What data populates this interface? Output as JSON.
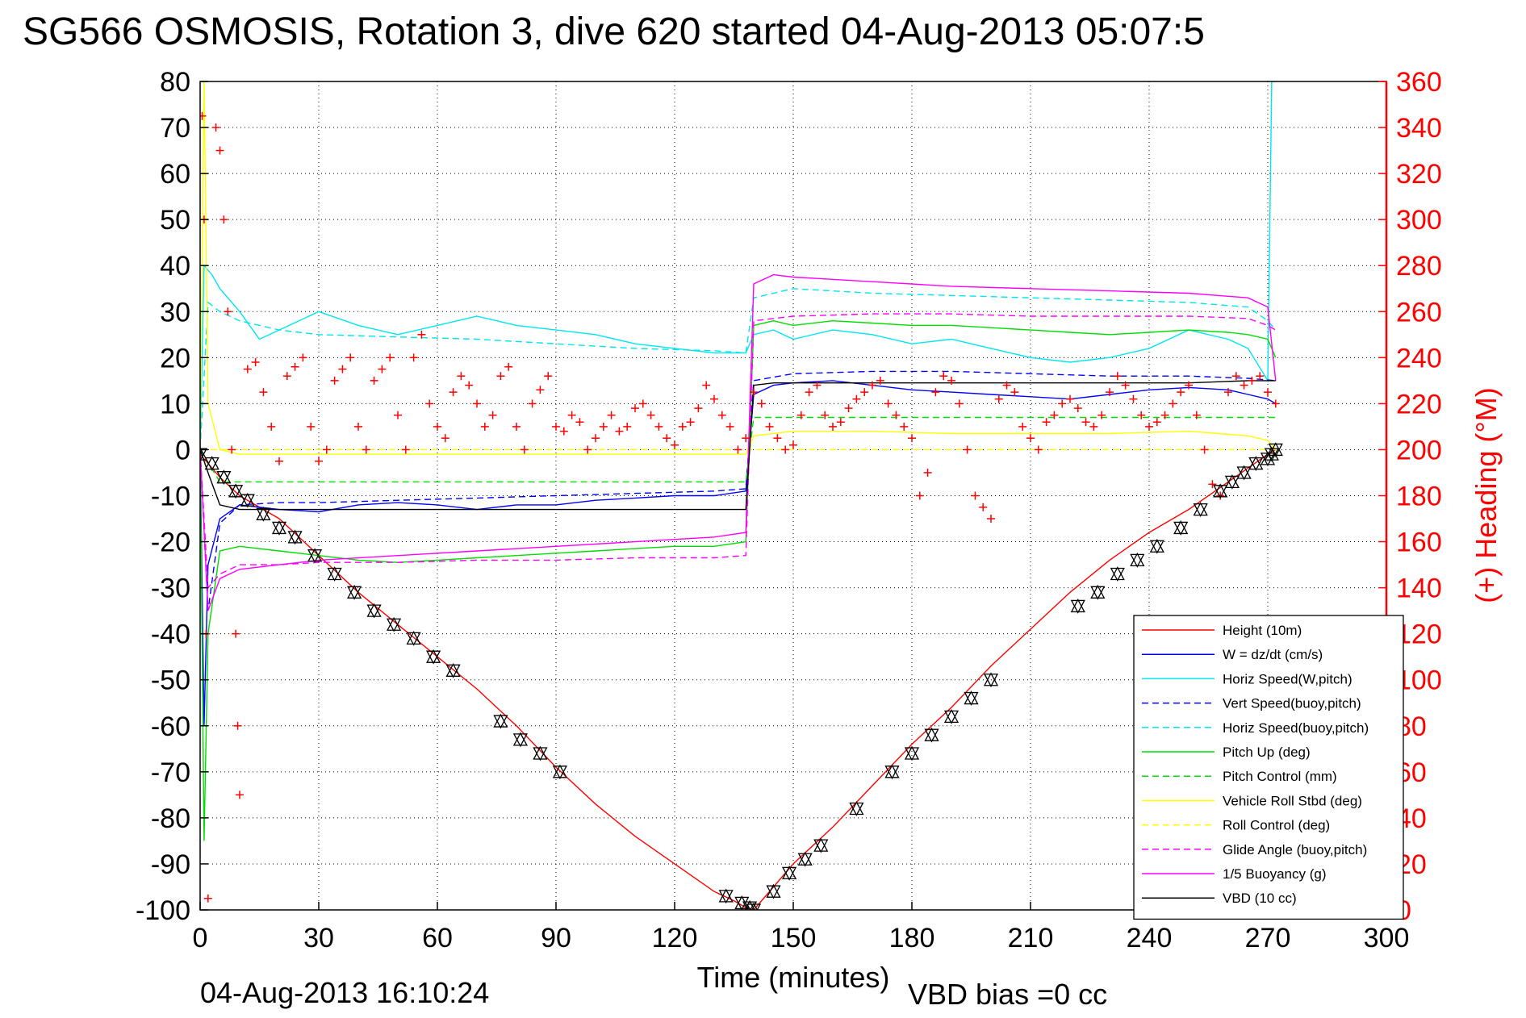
{
  "figure": {
    "title": "SG566 OSMOSIS, Rotation 3, dive 620 started 04-Aug-2013 05:07:5",
    "footer_left": "04-Aug-2013 16:10:24",
    "footer_right": "VBD bias =0 cc"
  },
  "chart_data": {
    "type": "line",
    "title": "SG566 OSMOSIS, Rotation 3, dive 620 started 04-Aug-2013 05:07:5",
    "xlabel": "Time (minutes)",
    "ylabel": "",
    "y2label": "(+) Heading (°M)",
    "xlim": [
      0,
      300
    ],
    "ylim": [
      -100,
      80
    ],
    "y2lim": [
      0,
      360
    ],
    "xticks": [
      0,
      30,
      60,
      90,
      120,
      150,
      180,
      210,
      240,
      270,
      300
    ],
    "yticks": [
      80,
      70,
      60,
      50,
      40,
      30,
      20,
      10,
      0,
      -10,
      -20,
      -30,
      -40,
      -50,
      -60,
      -70,
      -80,
      -90,
      -100
    ],
    "y2ticks": [
      360,
      340,
      320,
      300,
      280,
      260,
      240,
      220,
      200,
      180,
      160,
      140,
      120,
      100,
      80,
      60,
      40,
      20,
      0
    ],
    "grid": true,
    "legend_position": "bottom-right",
    "colors": {
      "height": "#ff0000",
      "w": "#0000ff",
      "horiz_speed": "#00e5ee",
      "pitch": "#00dd00",
      "roll": "#ffff00",
      "glide": "#ff00ff",
      "vbd": "#000000",
      "heading": "#ff0000"
    },
    "series": [
      {
        "name": "Height (10m)",
        "color": "#ff0000",
        "dash": "",
        "x": [
          0,
          5,
          10,
          20,
          30,
          40,
          50,
          60,
          70,
          80,
          90,
          100,
          110,
          120,
          130,
          135,
          138,
          140,
          145,
          150,
          160,
          170,
          180,
          190,
          200,
          210,
          220,
          230,
          240,
          250,
          260,
          265,
          270,
          272
        ],
        "y": [
          -1,
          -6,
          -10,
          -15,
          -23,
          -31,
          -38,
          -45,
          -52,
          -60,
          -69,
          -77,
          -84,
          -90,
          -96,
          -98,
          -99.5,
          -100,
          -95,
          -90,
          -82,
          -73,
          -64,
          -56,
          -47,
          -39,
          -31,
          -24,
          -18,
          -13,
          -7,
          -4,
          -1,
          0
        ]
      },
      {
        "name": "W = dz/dt (cm/s)",
        "color": "#0000ff",
        "dash": "",
        "x": [
          0,
          1,
          2,
          5,
          10,
          20,
          30,
          40,
          50,
          60,
          70,
          80,
          90,
          100,
          110,
          120,
          130,
          138,
          140,
          145,
          150,
          160,
          170,
          180,
          190,
          200,
          210,
          220,
          230,
          240,
          250,
          260,
          265,
          270,
          272
        ],
        "y": [
          0,
          -60,
          -25,
          -15,
          -12,
          -13,
          -13.5,
          -12,
          -11.5,
          -12,
          -13,
          -12,
          -12,
          -11,
          -10.5,
          -10,
          -10,
          -9,
          12,
          14,
          14.5,
          15,
          14,
          13,
          12.5,
          12,
          11.5,
          11,
          12,
          13,
          13.5,
          13,
          12,
          11,
          10
        ]
      },
      {
        "name": "Horiz Speed(W,pitch)",
        "color": "#00e5ee",
        "dash": "",
        "x": [
          0,
          1,
          3,
          5,
          10,
          15,
          20,
          30,
          40,
          50,
          60,
          70,
          80,
          90,
          100,
          110,
          120,
          130,
          138,
          140,
          145,
          150,
          160,
          170,
          180,
          190,
          200,
          210,
          220,
          230,
          240,
          250,
          260,
          265,
          270,
          271,
          272
        ],
        "y": [
          0,
          40,
          38,
          35,
          30,
          24,
          26,
          30,
          27,
          25,
          27,
          29,
          27,
          26,
          25,
          23,
          22,
          21,
          21,
          25,
          26,
          24,
          26,
          25,
          23,
          24,
          22,
          20,
          19,
          20,
          22,
          26,
          24,
          22,
          15,
          80,
          80
        ]
      },
      {
        "name": "Vert Speed(buoy,pitch)",
        "color": "#0000ff",
        "dash": "8,5",
        "x": [
          0,
          2,
          5,
          10,
          20,
          30,
          50,
          70,
          90,
          110,
          130,
          138,
          140,
          150,
          170,
          190,
          210,
          230,
          250,
          265,
          272
        ],
        "y": [
          0,
          -35,
          -16,
          -12,
          -11.5,
          -11.5,
          -11,
          -10.5,
          -10,
          -9.5,
          -9,
          -8.5,
          15,
          16.5,
          17,
          17,
          16.5,
          16,
          16,
          15.5,
          15
        ]
      },
      {
        "name": "Horiz Speed(buoy,pitch)",
        "color": "#00e5ee",
        "dash": "8,5",
        "x": [
          0,
          2,
          5,
          10,
          20,
          30,
          50,
          70,
          90,
          110,
          130,
          138,
          140,
          150,
          170,
          190,
          210,
          230,
          250,
          265,
          270,
          272
        ],
        "y": [
          0,
          32,
          30,
          28,
          26,
          25,
          24.5,
          24,
          23,
          22,
          21.5,
          21,
          33,
          35,
          34,
          33.5,
          33,
          32.5,
          32,
          31,
          28,
          26
        ]
      },
      {
        "name": "Pitch Up (deg)",
        "color": "#00dd00",
        "dash": "",
        "x": [
          0,
          1,
          2,
          5,
          10,
          20,
          30,
          40,
          50,
          60,
          70,
          80,
          90,
          100,
          110,
          120,
          130,
          138,
          140,
          145,
          150,
          160,
          170,
          180,
          190,
          200,
          210,
          220,
          230,
          240,
          250,
          260,
          265,
          270,
          272
        ],
        "y": [
          0,
          -85,
          -40,
          -22,
          -21,
          -22,
          -23,
          -24,
          -24.5,
          -24,
          -23.5,
          -23,
          -22.5,
          -22,
          -21.5,
          -21,
          -21,
          -20,
          27,
          28,
          27,
          28,
          27.5,
          27,
          27,
          26.5,
          26,
          25.5,
          25,
          25.5,
          26,
          25.5,
          25,
          24,
          20
        ]
      },
      {
        "name": "Pitch Control (mm)",
        "color": "#00dd00",
        "dash": "8,5",
        "x": [
          0,
          5,
          10,
          20,
          30,
          50,
          70,
          90,
          110,
          130,
          138,
          140,
          150,
          170,
          190,
          210,
          230,
          250,
          265,
          272
        ],
        "y": [
          0,
          -7,
          -7,
          -7,
          -7,
          -7,
          -7,
          -7,
          -7,
          -7,
          -7,
          7,
          7,
          7,
          7,
          7,
          7,
          7,
          7,
          7
        ]
      },
      {
        "name": "Vehicle Roll Stbd (deg)",
        "color": "#ffff00",
        "dash": "",
        "x": [
          0,
          1,
          2,
          5,
          10,
          20,
          30,
          50,
          70,
          90,
          110,
          130,
          138,
          140,
          150,
          170,
          190,
          210,
          230,
          250,
          265,
          270,
          272
        ],
        "y": [
          0,
          80,
          10,
          0,
          -1,
          -1,
          -1,
          -1,
          -1,
          -1,
          -1,
          -1,
          -1,
          3,
          4,
          4,
          3.5,
          3.5,
          3.5,
          4,
          3,
          2,
          0
        ]
      },
      {
        "name": "Roll Control (deg)",
        "color": "#ffff00",
        "dash": "8,5",
        "x": [
          0,
          5,
          10,
          30,
          60,
          90,
          120,
          138,
          140,
          170,
          200,
          230,
          260,
          272
        ],
        "y": [
          0,
          0,
          0,
          0,
          0,
          0,
          0,
          0,
          0,
          0,
          0,
          0,
          0,
          0
        ]
      },
      {
        "name": "Glide Angle (buoy,pitch)",
        "color": "#ff00ff",
        "dash": "8,5",
        "x": [
          0,
          2,
          5,
          10,
          20,
          30,
          50,
          70,
          90,
          110,
          130,
          138,
          140,
          150,
          170,
          190,
          210,
          230,
          250,
          265,
          270,
          272
        ],
        "y": [
          0,
          -30,
          -27,
          -25,
          -25,
          -24.5,
          -24.5,
          -24,
          -24,
          -23.5,
          -23.5,
          -23,
          28,
          29,
          29.5,
          29.5,
          29,
          29,
          29,
          28.5,
          27,
          26
        ]
      },
      {
        "name": "1/5 Buoyancy (g)",
        "color": "#ff00ff",
        "dash": "",
        "x": [
          0,
          2,
          5,
          10,
          20,
          30,
          50,
          70,
          90,
          110,
          130,
          138,
          140,
          145,
          150,
          170,
          190,
          210,
          230,
          250,
          265,
          270,
          272
        ],
        "y": [
          0,
          -35,
          -28,
          -26,
          -25,
          -24,
          -23,
          -22,
          -21,
          -20,
          -19,
          -18,
          36,
          38,
          37.5,
          36.5,
          35.5,
          35,
          34.5,
          34,
          33,
          31,
          15
        ]
      },
      {
        "name": "VBD (10 cc)",
        "color": "#000000",
        "dash": "",
        "x": [
          0,
          2,
          5,
          10,
          20,
          30,
          50,
          70,
          90,
          110,
          130,
          138,
          140,
          145,
          150,
          170,
          190,
          210,
          230,
          250,
          265,
          270,
          272
        ],
        "y": [
          0,
          -5,
          -12,
          -13,
          -13,
          -13,
          -13,
          -13,
          -13,
          -13,
          -13,
          -13,
          14,
          14.5,
          14.5,
          14.5,
          14.5,
          14.5,
          14.5,
          14.5,
          15,
          15,
          15
        ]
      }
    ],
    "heading": {
      "name": "(+) Heading",
      "color": "#ff0000",
      "axis": "right",
      "x": [
        0.5,
        1,
        1.5,
        2,
        4,
        5,
        6,
        7,
        8,
        9,
        9.5,
        10,
        12,
        14,
        16,
        18,
        20,
        22,
        24,
        26,
        28,
        30,
        32,
        34,
        36,
        38,
        40,
        42,
        44,
        46,
        48,
        50,
        52,
        54,
        56,
        58,
        60,
        62,
        64,
        66,
        68,
        70,
        72,
        74,
        76,
        78,
        80,
        82,
        84,
        86,
        88,
        90,
        92,
        94,
        96,
        98,
        100,
        102,
        104,
        106,
        108,
        110,
        112,
        114,
        116,
        118,
        120,
        122,
        124,
        126,
        128,
        130,
        132,
        134,
        136,
        138,
        140,
        142,
        144,
        146,
        148,
        150,
        152,
        154,
        156,
        158,
        160,
        162,
        164,
        166,
        168,
        170,
        172,
        174,
        176,
        178,
        180,
        182,
        184,
        186,
        188,
        190,
        192,
        194,
        196,
        198,
        200,
        202,
        204,
        206,
        208,
        210,
        212,
        214,
        216,
        218,
        220,
        222,
        224,
        226,
        228,
        230,
        232,
        234,
        236,
        238,
        240,
        242,
        244,
        246,
        248,
        250,
        252,
        254,
        256,
        258,
        260,
        262,
        264,
        266,
        268,
        270,
        272
      ],
      "y": [
        345,
        300,
        120,
        5,
        340,
        330,
        300,
        260,
        200,
        120,
        80,
        50,
        235,
        238,
        225,
        210,
        195,
        232,
        236,
        240,
        210,
        195,
        200,
        230,
        235,
        240,
        210,
        200,
        230,
        235,
        240,
        215,
        200,
        240,
        250,
        220,
        210,
        205,
        225,
        232,
        228,
        220,
        210,
        215,
        232,
        236,
        210,
        200,
        220,
        226,
        232,
        210,
        208,
        215,
        212,
        200,
        205,
        210,
        215,
        208,
        210,
        218,
        220,
        215,
        210,
        205,
        202,
        210,
        212,
        218,
        228,
        222,
        215,
        210,
        200,
        205,
        225,
        220,
        210,
        205,
        200,
        202,
        215,
        225,
        228,
        215,
        210,
        212,
        218,
        222,
        225,
        228,
        230,
        220,
        215,
        210,
        205,
        180,
        190,
        225,
        232,
        230,
        220,
        200,
        180,
        175,
        170,
        222,
        228,
        225,
        210,
        205,
        200,
        212,
        215,
        220,
        222,
        218,
        212,
        210,
        215,
        225,
        232,
        228,
        222,
        215,
        210,
        212,
        215,
        220,
        225,
        228,
        215,
        200,
        185,
        180,
        225,
        232,
        228,
        230,
        232,
        225,
        220
      ]
    },
    "markers": {
      "shape": "hourglass",
      "color": "#000000",
      "x": [
        0,
        3,
        6,
        9,
        12,
        16,
        20,
        24,
        29,
        34,
        39,
        44,
        49,
        54,
        59,
        64,
        76,
        81,
        86,
        91,
        133,
        137,
        139,
        140,
        145,
        149,
        153,
        157,
        166,
        175,
        180,
        185,
        190,
        195,
        200,
        222,
        227,
        232,
        237,
        242,
        248,
        253,
        258,
        261,
        264,
        267,
        270,
        271,
        272
      ],
      "y": [
        -1,
        -3,
        -6,
        -9,
        -11,
        -14,
        -17,
        -19,
        -23,
        -27,
        -31,
        -35,
        -38,
        -41,
        -45,
        -48,
        -59,
        -63,
        -66,
        -70,
        -97,
        -98.5,
        -99.5,
        -100,
        -96,
        -92,
        -89,
        -86,
        -78,
        -70,
        -66,
        -62,
        -58,
        -54,
        -50,
        -34,
        -31,
        -27,
        -24,
        -21,
        -17,
        -13,
        -9,
        -7,
        -5,
        -3,
        -2,
        -1,
        0
      ]
    }
  }
}
